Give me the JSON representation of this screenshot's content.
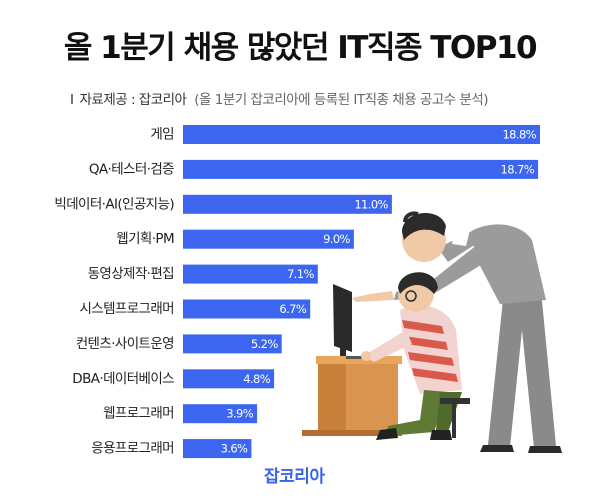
{
  "header": {
    "title": "올 1분기 채용 많았던 IT직종 TOP10",
    "source_prefix": "I",
    "source_text": "자료제공 : 잡코리아",
    "source_note": "(올 1분기 잡코리아에 등록된 IT직종 채용 공고수 분석)"
  },
  "brand": {
    "label": "잡코리아"
  },
  "colors": {
    "bar": "#3d66f0",
    "brand": "#3a63e8",
    "label_text": "#ffffff"
  },
  "illustration": {
    "icon": "office-workers-at-desk-illustration"
  },
  "chart_data": {
    "type": "bar",
    "orientation": "horizontal",
    "title": "올 1분기 채용 많았던 IT직종 TOP10",
    "xlabel": "",
    "ylabel": "",
    "grid": false,
    "unit": "%",
    "xlim": [
      0,
      18.8
    ],
    "categories": [
      "게임",
      "QA·테스터·검증",
      "빅데이터·AI(인공지능)",
      "웹기획·PM",
      "동영상제작·편집",
      "시스템프로그래머",
      "컨텐츠·사이트운영",
      "DBA·데이터베이스",
      "웹프로그래머",
      "응용프로그래머"
    ],
    "values": [
      18.8,
      18.7,
      11.0,
      9.0,
      7.1,
      6.7,
      5.2,
      4.8,
      3.9,
      3.6
    ],
    "value_labels": [
      "18.8%",
      "18.7%",
      "11.0%",
      "9.0%",
      "7.1%",
      "6.7%",
      "5.2%",
      "4.8%",
      "3.9%",
      "3.6%"
    ]
  }
}
